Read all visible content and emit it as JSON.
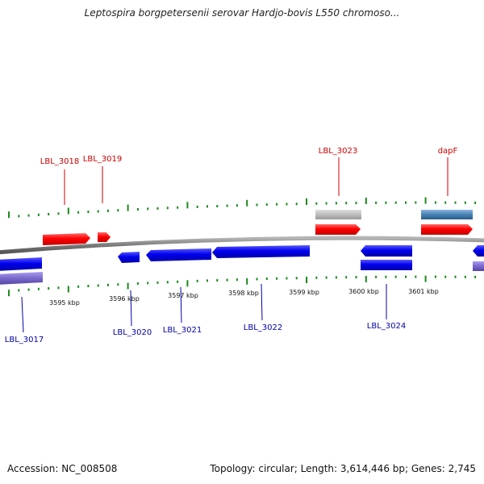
{
  "title": "Leptospira borgpetersenii serovar Hardjo-bovis L550 chromoso...",
  "footer": {
    "accession": "Accession: NC_008508",
    "summary": "Topology: circular; Length: 3,614,446 bp; Genes: 2,745"
  },
  "scale": {
    "labels": [
      "3595 kbp",
      "3596 kbp",
      "3597 kbp",
      "3598 kbp",
      "3599 kbp",
      "3600 kbp",
      "3601 kbp"
    ]
  },
  "colors": {
    "forward": "#ff0000",
    "reverse": "#0000ee",
    "forward_label": "#cc0000",
    "reverse_label": "#0000aa",
    "rna": "#bbbbbb",
    "extra": "#4682b4",
    "reverse_extra": "#7b68cc",
    "backbone": "#7f7f7f",
    "ticks": "#1a8a1a"
  },
  "labels": {
    "forward": [
      "LBL_3018",
      "LBL_3019",
      "LBL_3023",
      "dapF"
    ],
    "reverse": [
      "LBL_3017",
      "LBL_3020",
      "LBL_3021",
      "LBL_3022",
      "LBL_3024"
    ]
  }
}
